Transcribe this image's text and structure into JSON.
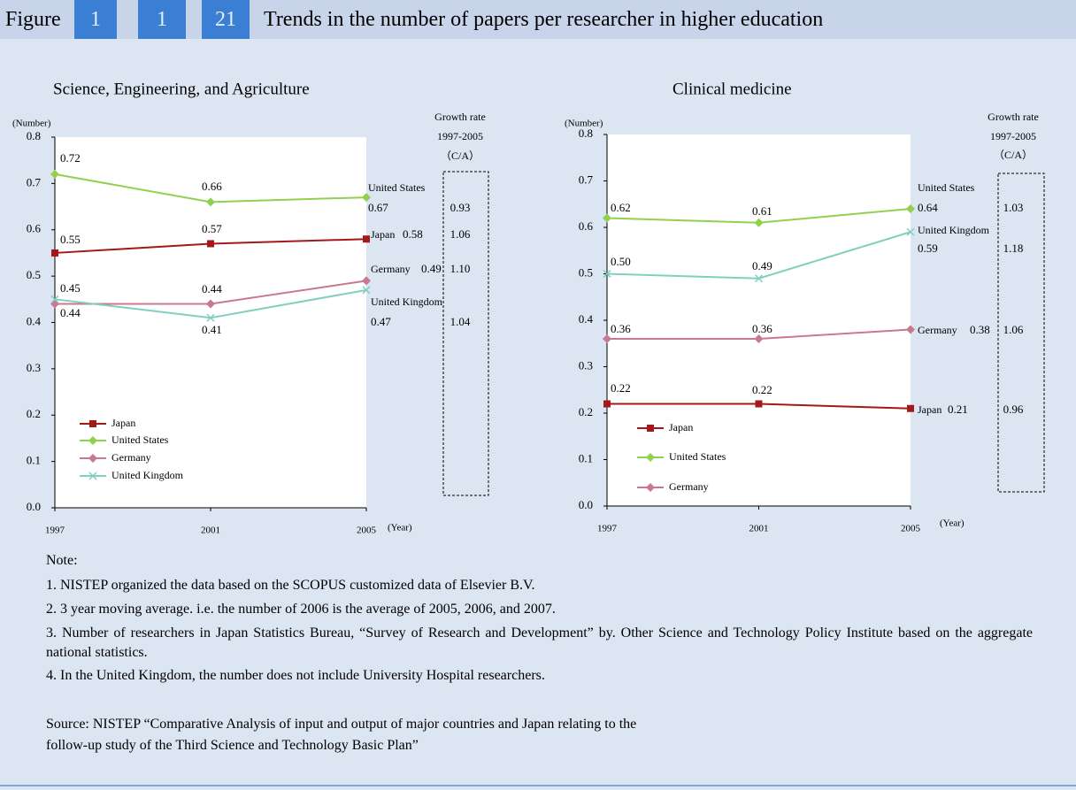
{
  "header": {
    "label": "Figure",
    "numbers": [
      "1",
      "1",
      "21"
    ],
    "title": "Trends in the number of papers per researcher in higher education"
  },
  "chart_data": [
    {
      "type": "line",
      "title": "Science, Engineering, and Agriculture",
      "y_label": "(Number)",
      "x_label": "(Year)",
      "categories": [
        "1997",
        "2001",
        "2005"
      ],
      "ylim": [
        0,
        0.8
      ],
      "yticks": [
        {
          "value": 0,
          "label": "0.0"
        },
        {
          "value": 0.1,
          "label": "0.1"
        },
        {
          "value": 0.2,
          "label": "0.2"
        },
        {
          "value": 0.3,
          "label": "0.3"
        },
        {
          "value": 0.4,
          "label": "0.4"
        },
        {
          "value": 0.5,
          "label": "0.5"
        },
        {
          "value": 0.6,
          "label": "0.6"
        },
        {
          "value": 0.7,
          "label": "0.7"
        },
        {
          "value": 0.8,
          "label": "0.8"
        }
      ],
      "growth_header": [
        "Growth rate",
        "1997-2005",
        "（C/A）"
      ],
      "series": [
        {
          "name": "Japan",
          "color": "#a31818",
          "marker": "square",
          "values": [
            0.55,
            0.57,
            0.58
          ],
          "growth_rate": "1.06"
        },
        {
          "name": "United States",
          "color": "#92d050",
          "marker": "diamond",
          "values": [
            0.72,
            0.66,
            0.67
          ],
          "growth_rate": "0.93"
        },
        {
          "name": "Germany",
          "color": "#c87890",
          "marker": "diamond",
          "values": [
            0.44,
            0.44,
            0.49
          ],
          "growth_rate": "1.10"
        },
        {
          "name": "United Kingdom",
          "color": "#80cfc0",
          "marker": "x",
          "values": [
            0.45,
            0.41,
            0.47
          ],
          "growth_rate": "1.04"
        }
      ]
    },
    {
      "type": "line",
      "title": "Clinical medicine",
      "y_label": "(Number)",
      "x_label": "(Year)",
      "categories": [
        "1997",
        "2001",
        "2005"
      ],
      "ylim": [
        0,
        0.8
      ],
      "yticks": [
        {
          "value": 0,
          "label": "0.0"
        },
        {
          "value": 0.1,
          "label": "0.1"
        },
        {
          "value": 0.2,
          "label": "0.2"
        },
        {
          "value": 0.3,
          "label": "0.3"
        },
        {
          "value": 0.4,
          "label": "0.4"
        },
        {
          "value": 0.5,
          "label": "0.5"
        },
        {
          "value": 0.6,
          "label": "0.6"
        },
        {
          "value": 0.7,
          "label": "0.7"
        },
        {
          "value": 0.8,
          "label": "0.8"
        }
      ],
      "growth_header": [
        "Growth rate",
        "1997-2005",
        "（C/A）"
      ],
      "series": [
        {
          "name": "Japan",
          "color": "#a31818",
          "marker": "square",
          "values": [
            0.22,
            0.22,
            0.21
          ],
          "growth_rate": "0.96"
        },
        {
          "name": "United States",
          "color": "#92d050",
          "marker": "diamond",
          "values": [
            0.62,
            0.61,
            0.64
          ],
          "growth_rate": "1.03"
        },
        {
          "name": "Germany",
          "color": "#c87890",
          "marker": "diamond",
          "values": [
            0.36,
            0.36,
            0.38
          ],
          "growth_rate": "1.06"
        },
        {
          "name": "United Kingdom",
          "color": "#80cfc0",
          "marker": "x",
          "values": [
            0.5,
            0.49,
            0.59
          ],
          "value_labels": [
            "0.50",
            "0.49",
            "0.59"
          ],
          "growth_rate": "1.18"
        }
      ]
    }
  ],
  "notes": {
    "heading": "Note:",
    "items": [
      "1. NISTEP organized the data based on the SCOPUS customized data of Elsevier B.V.",
      "2. 3 year moving average. i.e. the number of 2006 is the average of 2005, 2006, and 2007.",
      "3. Number of researchers in Japan Statistics Bureau, “Survey of Research and Development” by. Other Science and Technology Policy Institute based on the aggregate national statistics.",
      "4. In the United Kingdom, the number does not include University Hospital researchers."
    ],
    "source": "Source: NISTEP “Comparative Analysis of input and output of major countries and Japan relating to the follow-up study of the Third Science and Technology Basic Plan”"
  }
}
